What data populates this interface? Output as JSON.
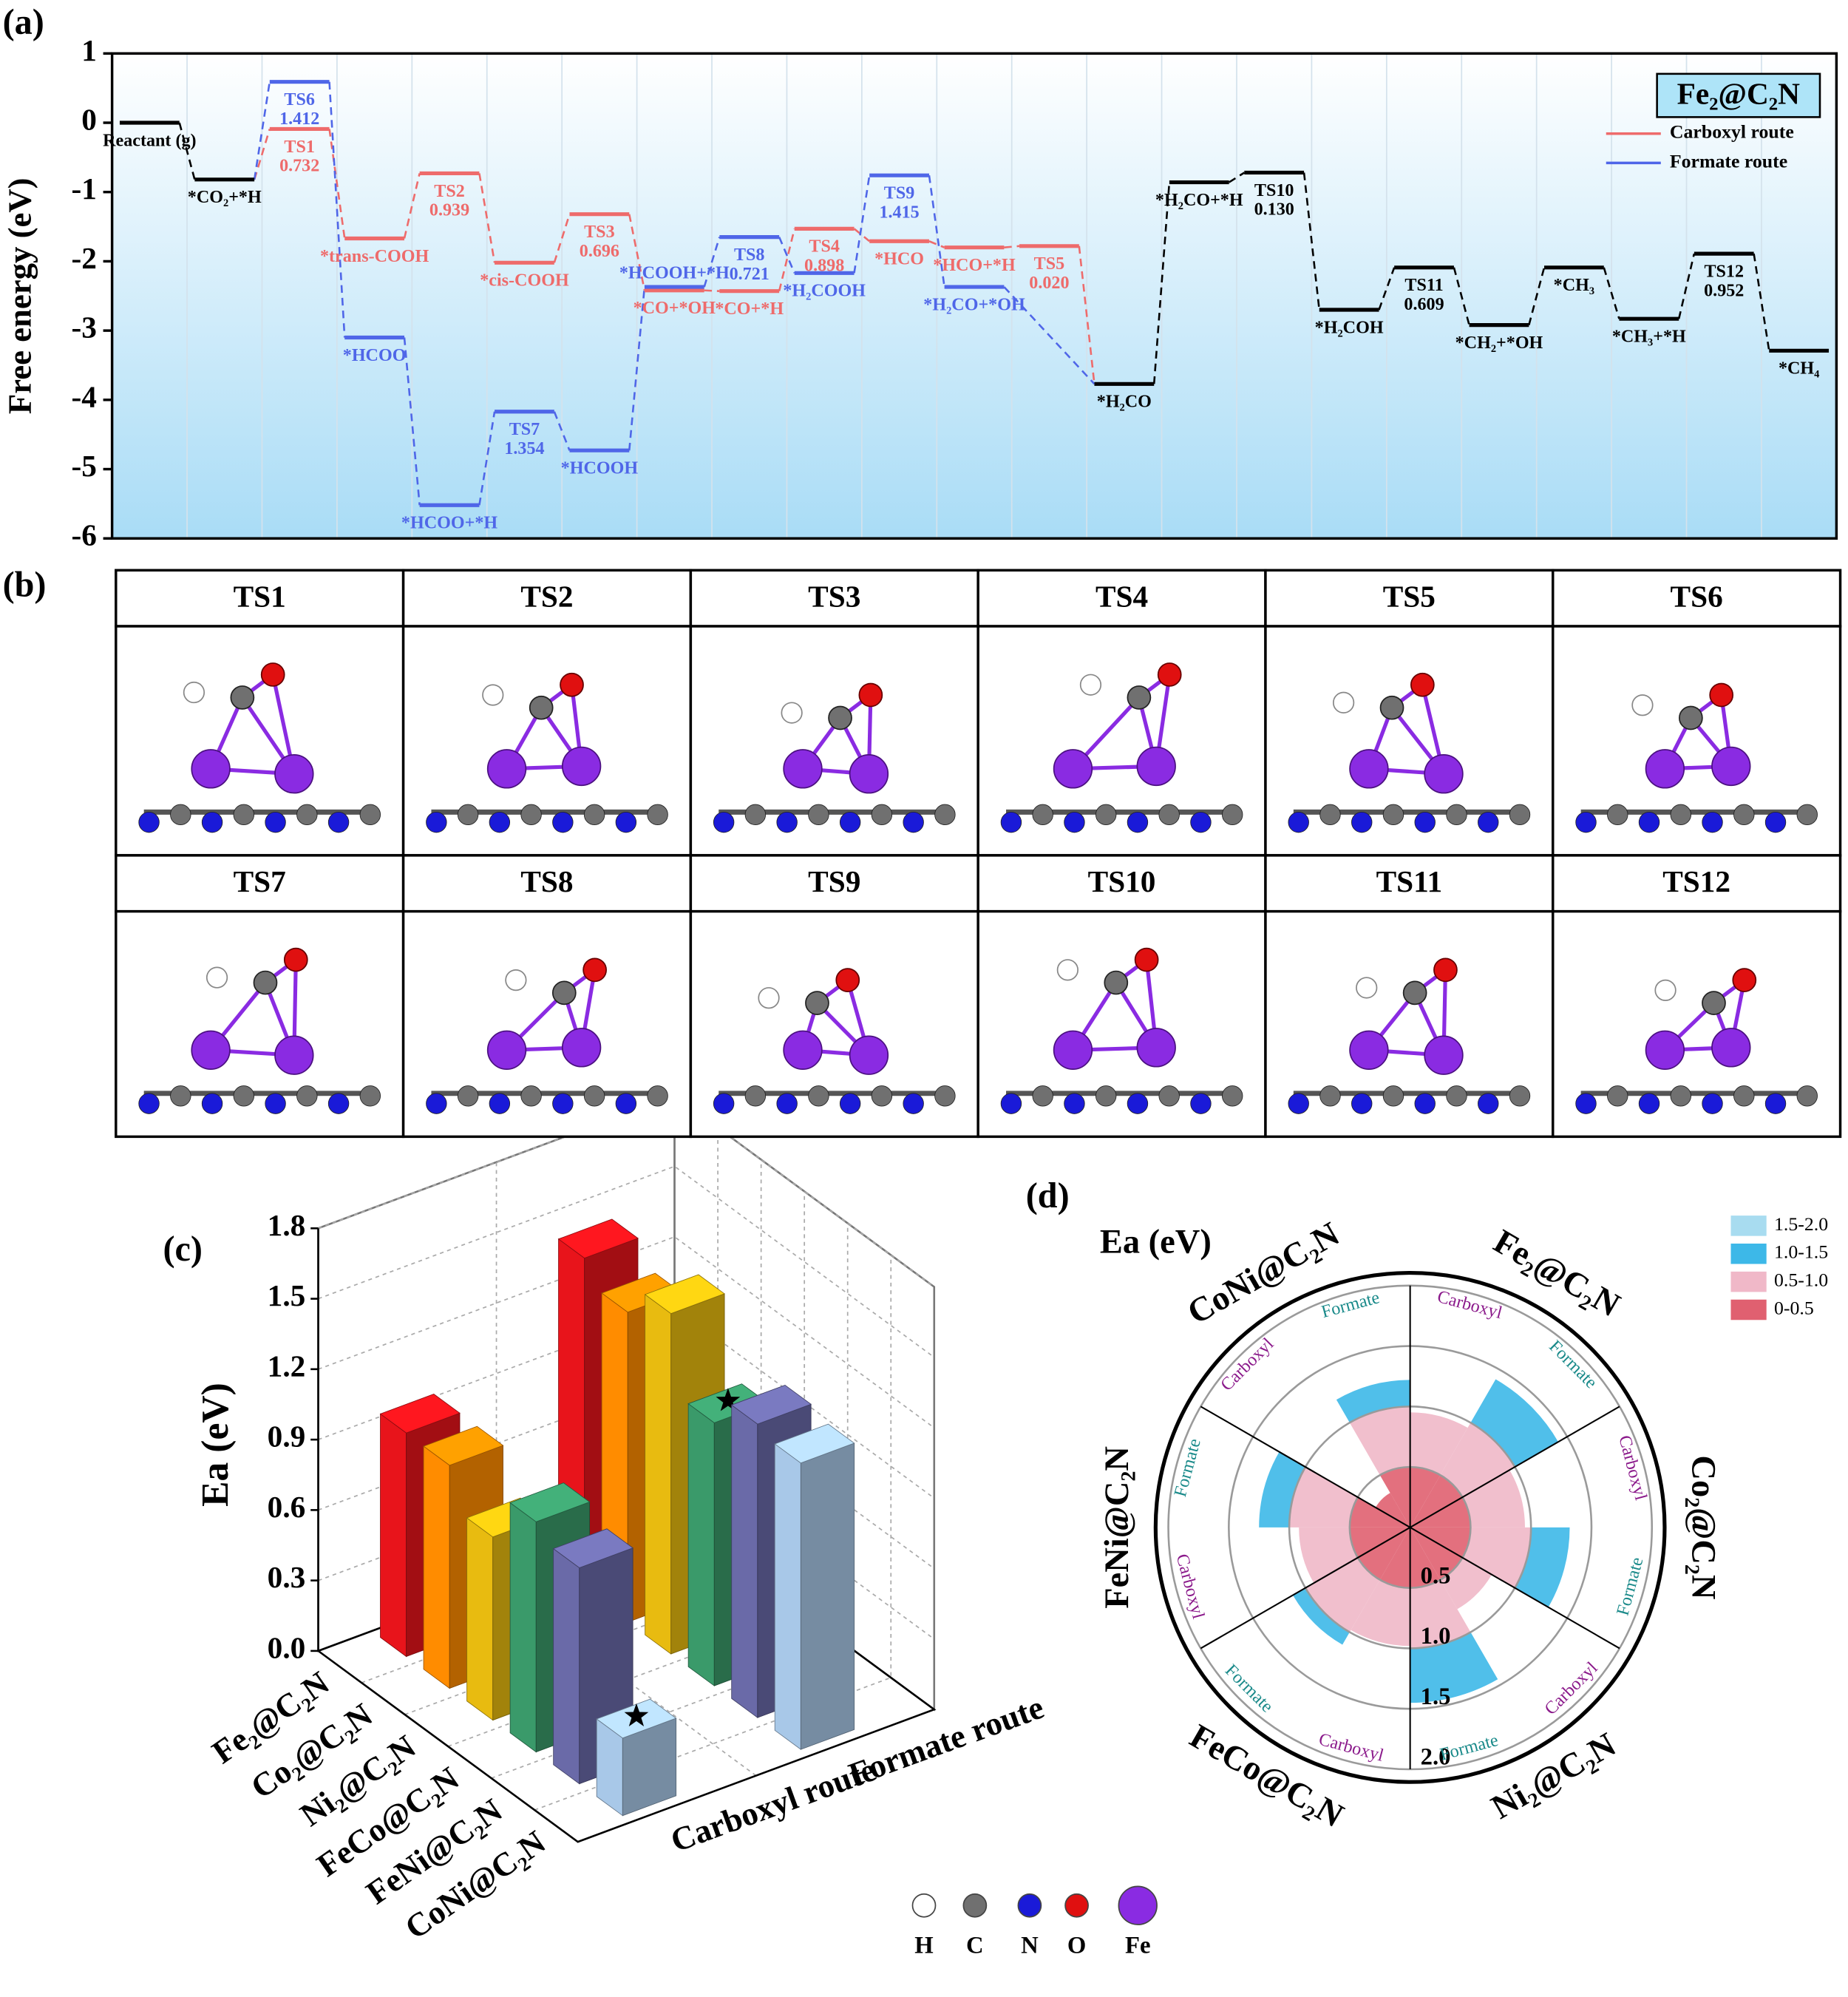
{
  "panels": [
    "(a)",
    "(b)",
    "(c)",
    "(d)"
  ],
  "chart_data": [
    {
      "type": "energy",
      "ylabel": "Free energy (eV)",
      "ylim": [
        -6,
        1
      ],
      "yticks": [
        -6,
        -5,
        -4,
        -3,
        -2,
        -1,
        0,
        1
      ],
      "legend_title": "Fe₂@C₂N",
      "series": [
        {
          "color": "#000000",
          "steps": [
            {
              "label": "Reactant (g)",
              "value": 0
            },
            {
              "label": "*CO₂+*H",
              "value": -0.82
            },
            {
              "label": "*H₂CO",
              "value": -3.77
            },
            {
              "label": "*H₂CO+*H",
              "value": -0.86
            },
            {
              "label": "TS10",
              "value": -0.72,
              "barrier": {
                "value": 0.13,
                "label": "0.130"
              }
            },
            {
              "label": "*H₂COH",
              "value": -2.7
            },
            {
              "label": "TS11",
              "value": -2.09,
              "barrier": 0.609
            },
            {
              "label": "*CH₂+*OH",
              "value": -2.92
            },
            {
              "label": "*CH₃",
              "value": -2.09
            },
            {
              "label": "*CH₃+*H",
              "value": -2.83
            },
            {
              "label": "TS12",
              "value": -1.89,
              "barrier": 0.952
            },
            {
              "label": "*CH₄",
              "value": -3.29
            }
          ]
        },
        {
          "name": "Carboxyl route",
          "color": "#ee6b6b",
          "steps": [
            {
              "label": "TS1",
              "value": -0.09,
              "barrier": 0.732
            },
            {
              "label": "*trans-COOH",
              "value": -1.67
            },
            {
              "label": "TS2",
              "value": -0.73,
              "barrier": 0.939
            },
            {
              "label": "*cis-COOH",
              "value": -2.02
            },
            {
              "label": "TS3",
              "value": -1.32,
              "barrier": 0.696
            },
            {
              "label": "*CO+*OH",
              "value": -2.42
            },
            {
              "label": "*CO+*H",
              "value": -2.43
            },
            {
              "label": "TS4",
              "value": -1.53,
              "barrier": 0.898
            },
            {
              "label": "*HCO",
              "value": -1.71
            },
            {
              "label": "*HCO+*H",
              "value": -1.8
            },
            {
              "label": "TS5",
              "value": -1.78,
              "barrier": {
                "value": 0.02,
                "label": "0.020"
              }
            }
          ]
        },
        {
          "name": "Formate route",
          "color": "#4f66e8",
          "steps": [
            {
              "label": "TS6",
              "value": 0.59,
              "barrier": 1.412
            },
            {
              "label": "*HCOO",
              "value": -3.1
            },
            {
              "label": "*HCOO+*H",
              "value": -5.52
            },
            {
              "label": "TS7",
              "value": -4.17,
              "barrier": 1.354
            },
            {
              "label": "*HCOOH",
              "value": -4.73
            },
            {
              "label": "*HCOOH+*H",
              "value": -2.37
            },
            {
              "label": "TS8",
              "value": -1.65,
              "barrier": 0.721
            },
            {
              "label": "*H₂COOH",
              "value": -2.17
            },
            {
              "label": "TS9",
              "value": -0.76,
              "barrier": 1.415
            },
            {
              "label": "*H₂CO+*OH",
              "value": -2.37
            }
          ]
        }
      ]
    },
    {
      "type": "bar3d",
      "ylabel": "Ea (eV)",
      "ylim": [
        0,
        1.8
      ],
      "yticks": [
        {
          "value": 0,
          "label": "0.0"
        },
        0.3,
        0.6,
        0.9,
        1.2,
        1.5,
        1.8
      ],
      "categories": [
        "Fe₂@C₂N",
        "Co₂@C₂N",
        "Ni₂@C₂N",
        "FeCo@C₂N",
        "FeNi@C₂N",
        "CoNi@C₂N"
      ],
      "colors": [
        "#e8141b",
        "#ff8c00",
        "#e8bb10",
        "#3a9a6a",
        "#6a6aa8",
        "#a8c8e8"
      ],
      "series": [
        {
          "name": "Carboxyl route",
          "values": [
            0.952,
            0.95,
            0.78,
            0.98,
            0.92,
            0.33
          ]
        },
        {
          "name": "Formate route",
          "values": [
            1.415,
            1.32,
            1.45,
            1.12,
            1.25,
            1.22
          ]
        }
      ]
    },
    {
      "type": "radial",
      "title": "Ea (eV)",
      "rlim": [
        0,
        2
      ],
      "rticks": [
        0.5,
        {
          "value": 1,
          "label": "1.0"
        },
        1.5,
        {
          "value": 2,
          "label": "2.0"
        }
      ],
      "categories": [
        "Fe₂@C₂N",
        "Co₂@C₂N",
        "Ni₂@C₂N",
        "FeCo@C₂N",
        "FeNi@C₂N",
        "CoNi@C₂N"
      ],
      "series": [
        {
          "name": "Carboxyl",
          "color": "#8b1a8b",
          "values": [
            0.952,
            0.95,
            0.78,
            0.98,
            0.92,
            0.33
          ]
        },
        {
          "name": "Formate",
          "color": "#1a8a8a",
          "values": [
            1.415,
            1.32,
            1.45,
            1.12,
            1.25,
            1.22
          ]
        }
      ],
      "legend": [
        {
          "label": "1.5-2.0",
          "color": "#a8dcf0"
        },
        {
          "label": "1.0-1.5",
          "color": "#3db8e8"
        },
        {
          "label": "0.5-1.0",
          "color": "#f0b8c8"
        },
        {
          "label": "0-0.5",
          "color": "#e06070"
        }
      ]
    }
  ],
  "structures": {
    "labels": [
      "TS1",
      "TS2",
      "TS3",
      "TS4",
      "TS5",
      "TS6",
      "TS7",
      "TS8",
      "TS9",
      "TS10",
      "TS11",
      "TS12"
    ],
    "atoms": [
      {
        "label": "H",
        "color": "#ffffff"
      },
      {
        "label": "C",
        "color": "#707070"
      },
      {
        "label": "N",
        "color": "#1a1ad8"
      },
      {
        "label": "O",
        "color": "#e01010"
      },
      {
        "label": "Fe",
        "color": "#8a2be2"
      }
    ]
  }
}
